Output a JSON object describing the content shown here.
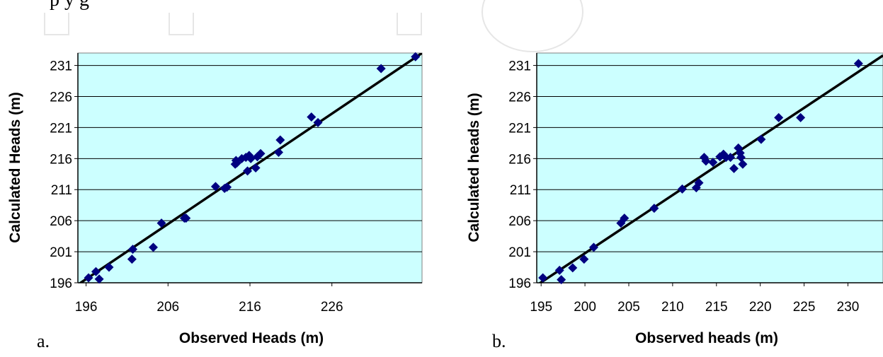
{
  "page": {
    "top_text": "p        y             g",
    "panels": [
      {
        "letter": "a."
      },
      {
        "letter": "b."
      }
    ]
  },
  "colors": {
    "plot_bg": "#ccffff",
    "marker": "#000080",
    "fit_line": "#000000",
    "grid": "#000000"
  },
  "chart_data": [
    {
      "type": "scatter",
      "panel": "a.",
      "title": "",
      "xlabel": "Observed Heads (m)",
      "ylabel": "Calculated Heads (m)",
      "xlim": [
        195,
        237
      ],
      "ylim": [
        196,
        233
      ],
      "xticks": [
        196,
        206,
        216,
        226
      ],
      "yticks": [
        196,
        201,
        206,
        211,
        216,
        221,
        226,
        231
      ],
      "grid": "horizontal",
      "legend": "none",
      "trendline": {
        "x": [
          195,
          237
        ],
        "y": [
          195.7,
          233
        ]
      },
      "series": [
        {
          "x": [
            196.3,
            197.2,
            197.6,
            198.8,
            201.6,
            201.7,
            204.2,
            205.2,
            208.0,
            208.2,
            211.8,
            212.9,
            213.2,
            214.2,
            214.3,
            214.4,
            215.0,
            215.5,
            215.7,
            215.9,
            216.1,
            216.7,
            216.9,
            217.3,
            219.5,
            219.7,
            223.5,
            224.3,
            232.0,
            236.2
          ],
          "y": [
            196.8,
            197.8,
            196.6,
            198.5,
            199.8,
            201.4,
            201.7,
            205.6,
            206.4,
            206.4,
            211.5,
            211.2,
            211.4,
            215.1,
            215.7,
            215.3,
            216.0,
            216.2,
            214.0,
            216.5,
            216.0,
            214.5,
            216.3,
            216.8,
            217.0,
            219.0,
            222.7,
            221.8,
            230.5,
            232.4
          ]
        }
      ]
    },
    {
      "type": "scatter",
      "panel": "b.",
      "title": "",
      "xlabel": "Observed heads (m)",
      "ylabel": "Calculated heads (m)",
      "xlim": [
        194.5,
        234
      ],
      "ylim": [
        196,
        233
      ],
      "xticks": [
        195,
        200,
        205,
        210,
        215,
        220,
        225,
        230
      ],
      "yticks": [
        196,
        201,
        206,
        211,
        216,
        221,
        226,
        231
      ],
      "grid": "horizontal",
      "legend": "none",
      "trendline": {
        "x": [
          194.5,
          234
        ],
        "y": [
          195.6,
          232.6
        ]
      },
      "series": [
        {
          "x": [
            195.2,
            197.1,
            197.3,
            198.6,
            199.9,
            201.0,
            204.1,
            204.5,
            207.9,
            211.1,
            212.7,
            213.0,
            213.6,
            213.8,
            214.6,
            215.4,
            215.8,
            216.1,
            216.6,
            217.0,
            217.5,
            217.7,
            217.8,
            218.0,
            220.1,
            222.1,
            224.6,
            231.2
          ],
          "y": [
            196.8,
            198.0,
            196.5,
            198.4,
            199.8,
            201.7,
            205.6,
            206.4,
            208.0,
            211.1,
            211.3,
            212.1,
            216.2,
            215.6,
            215.4,
            216.3,
            216.7,
            216.2,
            216.2,
            214.4,
            217.7,
            216.9,
            216.2,
            215.1,
            219.1,
            222.6,
            222.6,
            231.3
          ]
        }
      ]
    }
  ]
}
